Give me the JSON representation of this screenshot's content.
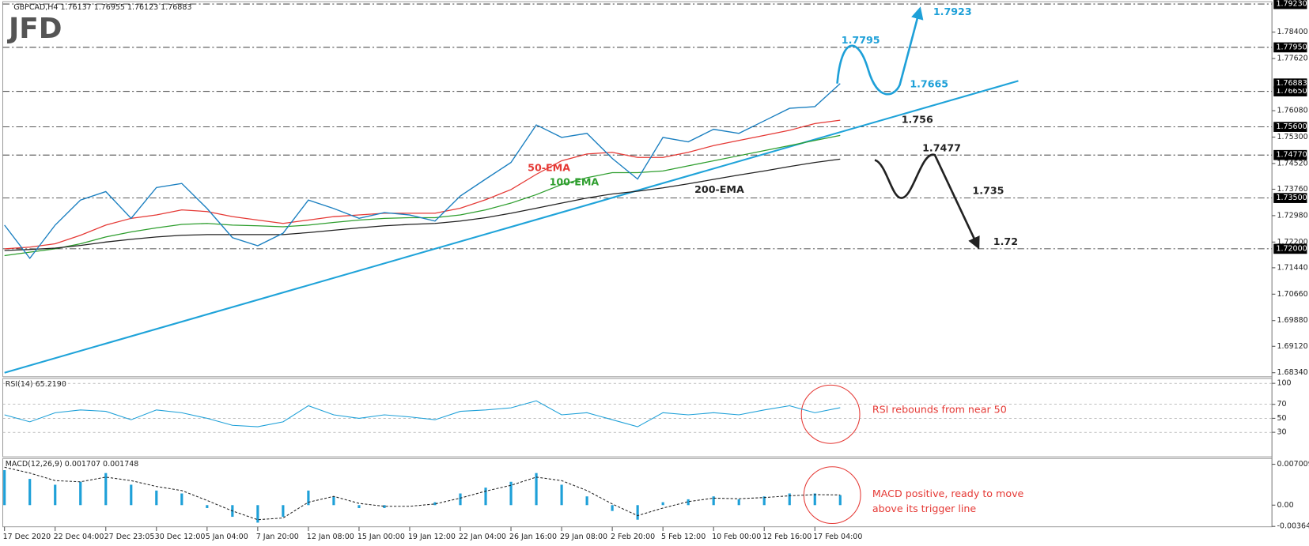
{
  "logo": "JFD",
  "chart_data": [
    {
      "type": "line",
      "title": "GBPCAD,H4 1.76137 1.76955 1.76123 1.76883",
      "color": "#1a7fc0",
      "values": [
        1.727,
        1.7172,
        1.727,
        1.7344,
        1.7369,
        1.729,
        1.7381,
        1.7393,
        1.7319,
        1.7233,
        1.7209,
        1.7246,
        1.7344,
        1.7319,
        1.729,
        1.7307,
        1.73,
        1.7282,
        1.7356,
        1.7406,
        1.7455,
        1.7566,
        1.7529,
        1.7541,
        1.7467,
        1.7406,
        1.7529,
        1.7516,
        1.7553,
        1.7541,
        1.7578,
        1.7615,
        1.762,
        1.7688
      ],
      "series": [
        {
          "name": "50-EMA",
          "color": "#e53935",
          "values": [
            1.72,
            1.7205,
            1.7215,
            1.724,
            1.727,
            1.729,
            1.73,
            1.7315,
            1.731,
            1.7295,
            1.7285,
            1.7275,
            1.7285,
            1.7295,
            1.73,
            1.7305,
            1.7305,
            1.7305,
            1.732,
            1.7345,
            1.7375,
            1.742,
            1.746,
            1.748,
            1.7485,
            1.747,
            1.747,
            1.7485,
            1.7505,
            1.752,
            1.7535,
            1.755,
            1.757,
            1.758
          ]
        },
        {
          "name": "100-EMA",
          "color": "#2e9e2e",
          "values": [
            1.718,
            1.719,
            1.72,
            1.7215,
            1.7235,
            1.725,
            1.7262,
            1.7272,
            1.7275,
            1.727,
            1.7268,
            1.7265,
            1.727,
            1.7278,
            1.7285,
            1.729,
            1.7292,
            1.7292,
            1.73,
            1.7315,
            1.7335,
            1.736,
            1.739,
            1.741,
            1.7425,
            1.7425,
            1.743,
            1.7445,
            1.746,
            1.7475,
            1.749,
            1.7505,
            1.752,
            1.7535
          ]
        },
        {
          "name": "200-EMA",
          "color": "#222222",
          "values": [
            1.7195,
            1.7198,
            1.7202,
            1.721,
            1.722,
            1.7228,
            1.7235,
            1.724,
            1.7242,
            1.7242,
            1.7242,
            1.7242,
            1.7248,
            1.7255,
            1.7262,
            1.7268,
            1.7272,
            1.7275,
            1.7282,
            1.7292,
            1.7305,
            1.732,
            1.7335,
            1.735,
            1.7362,
            1.737,
            1.738,
            1.7392,
            1.7405,
            1.7418,
            1.743,
            1.7443,
            1.7455,
            1.7465
          ]
        }
      ],
      "trendline": {
        "color": "#1fa3d9",
        "values": [
          1.6834,
          1.7696
        ]
      },
      "ylim": [
        1.6822,
        1.793
      ],
      "yticks": [
        {
          "value": 1.6834,
          "label": "1.68340"
        },
        {
          "value": 1.6912,
          "label": "1.69120"
        },
        {
          "value": 1.6988,
          "label": "1.69880"
        },
        {
          "value": 1.7066,
          "label": "1.70660"
        },
        {
          "value": 1.7144,
          "label": "1.71440"
        },
        {
          "value": 1.722,
          "label": "1.72200"
        },
        {
          "value": 1.7298,
          "label": "1.72980"
        },
        {
          "value": 1.7376,
          "label": "1.73760"
        },
        {
          "value": 1.7452,
          "label": "1.74520"
        },
        {
          "value": 1.753,
          "label": "1.75300"
        },
        {
          "value": 1.7608,
          "label": "1.76080"
        },
        {
          "value": 1.7762,
          "label": "1.77620"
        },
        {
          "value": 1.784,
          "label": "1.78400"
        }
      ],
      "current_price": {
        "value": 1.76883,
        "label": "1.76883"
      },
      "levels": [
        {
          "value": 1.7923,
          "axis_label": "1.79230",
          "color": "#1ea0d8"
        },
        {
          "value": 1.7795,
          "axis_label": "1.77950",
          "color": "#1ea0d8"
        },
        {
          "value": 1.7665,
          "axis_label": "1.76650",
          "color": "#1ea0d8"
        },
        {
          "value": 1.756,
          "axis_label": "1.75600",
          "color": "#222222"
        },
        {
          "value": 1.7477,
          "axis_label": "1.74770",
          "color": "#222222"
        },
        {
          "value": 1.735,
          "axis_label": "1.73500",
          "color": "#222222"
        },
        {
          "value": 1.72,
          "axis_label": "1.72000",
          "color": "#222222"
        }
      ]
    },
    {
      "type": "line",
      "title": "RSI(14) 65.2190",
      "color": "#1ea0d8",
      "values": [
        55,
        45,
        58,
        62,
        60,
        48,
        62,
        58,
        50,
        40,
        38,
        45,
        68,
        55,
        50,
        55,
        52,
        48,
        60,
        62,
        65,
        75,
        55,
        58,
        48,
        38,
        58,
        55,
        58,
        55,
        62,
        68,
        58,
        65.219
      ],
      "ylim": [
        -5,
        107
      ],
      "yticks": [
        30,
        50,
        70,
        100
      ],
      "grid": true,
      "annotation": "RSI rebounds from near 50",
      "annotation_color": "#e53935"
    },
    {
      "type": "bar",
      "title": "MACD(12,26,9) 0.001707 0.001748",
      "color": "#1ea0d8",
      "categories": [
        "17 Dec 2020",
        null,
        "22 Dec 04:00",
        null,
        "27 Dec 23:05",
        null,
        "30 Dec 12:00",
        null,
        "5 Jan 04:00",
        null,
        "7 Jan 20:00",
        null,
        "12 Jan 08:00",
        null,
        "15 Jan 00:00",
        null,
        "19 Jan 12:00",
        null,
        "22 Jan 04:00",
        null,
        "26 Jan 16:00",
        null,
        "29 Jan 08:00",
        null,
        "2 Feb 20:00",
        null,
        "5 Feb 12:00",
        null,
        "10 Feb 00:00",
        null,
        "12 Feb 16:00",
        null,
        "17 Feb 04:00",
        null
      ],
      "values": [
        0.006,
        0.0045,
        0.0035,
        0.004,
        0.0055,
        0.0035,
        0.0025,
        0.002,
        -0.0005,
        -0.002,
        -0.003,
        -0.002,
        0.0025,
        0.0015,
        -0.0005,
        -0.0005,
        0.0,
        0.0005,
        0.002,
        0.003,
        0.004,
        0.0055,
        0.0035,
        0.0015,
        -0.001,
        -0.0025,
        0.0005,
        0.001,
        0.0015,
        0.001,
        0.0015,
        0.002,
        0.002,
        0.001707
      ],
      "signal": {
        "color": "#222222",
        "values": [
          0.0065,
          0.0055,
          0.0042,
          0.004,
          0.0048,
          0.0042,
          0.0032,
          0.0025,
          0.0008,
          -0.001,
          -0.0025,
          -0.0022,
          0.0005,
          0.0015,
          0.0003,
          -0.0002,
          -0.0002,
          0.0002,
          0.0012,
          0.0024,
          0.0034,
          0.0048,
          0.0042,
          0.0025,
          0.0002,
          -0.0018,
          -0.0005,
          0.0006,
          0.0012,
          0.0011,
          0.0013,
          0.0016,
          0.0018,
          0.001748
        ]
      },
      "ylim": [
        -0.00372,
        0.008
      ],
      "yticks": [
        -0.003648,
        {
          "value": 0,
          "label": "0.00"
        },
        0.007009
      ],
      "annotation": [
        "MACD positive, ready to move",
        "above its trigger line"
      ],
      "annotation_color": "#e53935"
    }
  ]
}
